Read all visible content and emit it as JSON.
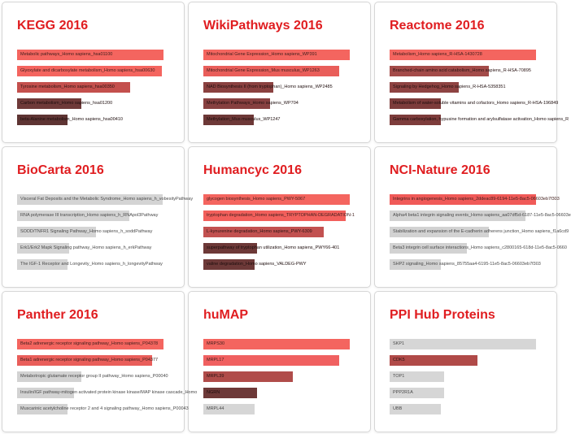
{
  "page": {
    "background": "#ffffff"
  },
  "theme": {
    "title_color": "#e01d20",
    "card_border": "#d6d6d6",
    "significant_red": "#f4655f",
    "insignificant_gray": "#d4d4d4"
  },
  "chart_data": [
    {
      "type": "bar",
      "orientation": "horizontal",
      "title": "KEGG 2016",
      "xlabel": "",
      "ylabel": "",
      "axis_shown": false,
      "bars": [
        {
          "label": "Metabolic pathways_Homo sapiens_hsa01100",
          "value": 1.0,
          "color": "#f4655f",
          "label_color": "#42201e"
        },
        {
          "label": "Glyoxylate and dicarboxylate metabolism_Homo sapiens_hsa00630",
          "value": 0.99,
          "color": "#f4655f",
          "label_color": "#42201e"
        },
        {
          "label": "Tyrosine metabolism_Homo sapiens_hsa00350",
          "value": 0.77,
          "color": "#c4504d",
          "label_color": "#2e1514"
        },
        {
          "label": "Carbon metabolism_Homo sapiens_hsa01200",
          "value": 0.44,
          "color": "#6f3a39",
          "label_color": "#1d0d0d"
        },
        {
          "label": "beta-Alanine metabolism_Homo sapiens_hsa00410",
          "value": 0.345,
          "color": "#5e3433",
          "label_color": "#1d0d0d"
        }
      ]
    },
    {
      "type": "bar",
      "orientation": "horizontal",
      "title": "WikiPathways 2016",
      "xlabel": "",
      "ylabel": "",
      "axis_shown": false,
      "bars": [
        {
          "label": "Mitochondrial Gene Expression_Homo sapiens_WP391",
          "value": 1.0,
          "color": "#f4655f",
          "label_color": "#42201e"
        },
        {
          "label": "Mitochondrial Gene Expression_Mus musculus_WP1263",
          "value": 0.93,
          "color": "#e95e5a",
          "label_color": "#42201e"
        },
        {
          "label": "NAD Biosynthesis II (from tryptophan)_Homo sapiens_WP2485",
          "value": 0.48,
          "color": "#8a4140",
          "label_color": "#200f0f"
        },
        {
          "label": "Methylation Pathways_Homo sapiens_WP704",
          "value": 0.455,
          "color": "#874040",
          "label_color": "#200f0f"
        },
        {
          "label": "Methylation_Mus musculus_WP1247",
          "value": 0.345,
          "color": "#6d3837",
          "label_color": "#1d0d0d"
        }
      ]
    },
    {
      "type": "bar",
      "orientation": "horizontal",
      "title": "Reactome 2016",
      "xlabel": "",
      "ylabel": "",
      "axis_shown": false,
      "bars": [
        {
          "label": "Metabolism_Homo sapiens_R-HSA-1430728",
          "value": 1.0,
          "color": "#f4655f",
          "label_color": "#42201e"
        },
        {
          "label": "Branched-chain amino acid catabolism_Homo sapiens_R-HSA-70895",
          "value": 0.68,
          "color": "#a34b49",
          "label_color": "#2a1313"
        },
        {
          "label": "Signaling by Hedgehog_Homo sapiens_R-HSA-5358351",
          "value": 0.47,
          "color": "#8e4342",
          "label_color": "#200f0f"
        },
        {
          "label": "Metabolism of water-soluble vitamins and cofactors_Homo sapiens_R-HSA-196849",
          "value": 0.35,
          "color": "#7d3c3b",
          "label_color": "#1d0d0d"
        },
        {
          "label": "Gamma carboxylation, hypusine formation and arylsulfatase activation_Homo sapiens_R",
          "value": 0.35,
          "color": "#7d3c3b",
          "label_color": "#1d0d0d"
        }
      ]
    },
    {
      "type": "bar",
      "orientation": "horizontal",
      "title": "BioCarta 2016",
      "xlabel": "",
      "ylabel": "",
      "axis_shown": false,
      "bars": [
        {
          "label": "Visceral Fat Deposits and the Metabolic Syndrome_Homo sapiens_h_vobesityPathway",
          "value": 0.995,
          "color": "#d4d4d4",
          "label_color": "#4a4a4a"
        },
        {
          "label": "RNA polymerase III transcription_Homo sapiens_h_RNApol3Pathway",
          "value": 0.765,
          "color": "#d4d4d4",
          "label_color": "#4a4a4a"
        },
        {
          "label": "SODD/TNFR1 Signaling Pathway_Homo sapiens_h_soddPathway",
          "value": 0.54,
          "color": "#d4d4d4",
          "label_color": "#4a4a4a"
        },
        {
          "label": "Erk1/Erk2 Mapk Signaling pathway_Homo sapiens_h_erkPathway",
          "value": 0.355,
          "color": "#d4d4d4",
          "label_color": "#4a4a4a"
        },
        {
          "label": "The IGF-1 Receptor and Longevity_Homo sapiens_h_longevityPathway",
          "value": 0.345,
          "color": "#d4d4d4",
          "label_color": "#4a4a4a"
        }
      ]
    },
    {
      "type": "bar",
      "orientation": "horizontal",
      "title": "Humancyc 2016",
      "xlabel": "",
      "ylabel": "",
      "axis_shown": false,
      "bars": [
        {
          "label": "glycogen biosynthesis_Homo sapiens_PWY-5067",
          "value": 1.0,
          "color": "#f4655f",
          "label_color": "#42201e"
        },
        {
          "label": "tryptophan degradation_Homo sapiens_TRYPTOPHAN-DEGRADATION-1",
          "value": 0.97,
          "color": "#f25f5b",
          "label_color": "#42201e"
        },
        {
          "label": "L-kynurenine degradation_Homo sapiens_PWY-6309",
          "value": 0.82,
          "color": "#c25150",
          "label_color": "#2e1514"
        },
        {
          "label": "superpathway of tryptophan utilization_Homo sapiens_PWY66-401",
          "value": 0.365,
          "color": "#6d3938",
          "label_color": "#1d0d0d"
        },
        {
          "label": "valine degradation_Homo sapiens_VALDEG-PWY",
          "value": 0.35,
          "color": "#6d3938",
          "label_color": "#1d0d0d"
        }
      ]
    },
    {
      "type": "bar",
      "orientation": "horizontal",
      "title": "NCI-Nature 2016",
      "xlabel": "",
      "ylabel": "",
      "axis_shown": false,
      "bars": [
        {
          "label": "Integrins in angiogenesis_Homo sapiens_2ddeac89-6194-11e5-8ac5-06603eb7f303",
          "value": 1.0,
          "color": "#f05a58",
          "label_color": "#42201e"
        },
        {
          "label": "Alpha4 beta1 integrin signaling events_Homo sapiens_aa07df5d-6187-11e5-8ac5-06603e",
          "value": 0.93,
          "color": "#d2d2d2",
          "label_color": "#4a4a4a"
        },
        {
          "label": "Stabilization and expansion of the E-cadherin adherens junction_Homo sapiens_f1a6cd9",
          "value": 0.68,
          "color": "#d2d2d2",
          "label_color": "#4a4a4a"
        },
        {
          "label": "Beta3 integrin cell surface interactions_Homo sapiens_c2800165-618d-11e5-8ac5-0660",
          "value": 0.53,
          "color": "#d2d2d2",
          "label_color": "#4a4a4a"
        },
        {
          "label": "SHP2 signaling_Homo sapiens_85755aa4-6195-11e5-8ac5-06603eb7f303",
          "value": 0.35,
          "color": "#d2d2d2",
          "label_color": "#4a4a4a"
        }
      ]
    },
    {
      "type": "bar",
      "orientation": "horizontal",
      "title": "Panther 2016",
      "xlabel": "",
      "ylabel": "",
      "axis_shown": false,
      "bars": [
        {
          "label": "Beta2 adrenergic receptor signaling pathway_Homo sapiens_P04378",
          "value": 1.0,
          "color": "#f4655f",
          "label_color": "#42201e"
        },
        {
          "label": "Beta1 adrenergic receptor signaling pathway_Homo sapiens_P04377",
          "value": 0.92,
          "color": "#e95e5a",
          "label_color": "#42201e"
        },
        {
          "label": "Metabotropic glutamate receptor group II pathway_Homo sapiens_P00040",
          "value": 0.44,
          "color": "#d2d2d2",
          "label_color": "#4a4a4a"
        },
        {
          "label": "Insulin/IGF pathway-mitogen activated protein kinase kinase/MAP kinase cascade_Homo",
          "value": 0.39,
          "color": "#d2d2d2",
          "label_color": "#4a4a4a"
        },
        {
          "label": "Muscarinic acetylcholine receptor 2 and 4 signaling pathway_Homo sapiens_P00043",
          "value": 0.345,
          "color": "#d2d2d2",
          "label_color": "#4a4a4a"
        }
      ]
    },
    {
      "type": "bar",
      "orientation": "horizontal",
      "title": "huMAP",
      "xlabel": "",
      "ylabel": "",
      "axis_shown": false,
      "bars": [
        {
          "label": "MRPS30",
          "value": 1.0,
          "color": "#f4655f",
          "label_color": "#42201e"
        },
        {
          "label": "MRPL17",
          "value": 0.93,
          "color": "#f06060",
          "label_color": "#42201e"
        },
        {
          "label": "MRPL39",
          "value": 0.61,
          "color": "#b04c4a",
          "label_color": "#2a1313"
        },
        {
          "label": "NGRN",
          "value": 0.365,
          "color": "#6d3938",
          "label_color": "#1d0d0d"
        },
        {
          "label": "MRPL44",
          "value": 0.35,
          "color": "#d6d6d6",
          "label_color": "#4a4a4a"
        }
      ]
    },
    {
      "type": "bar",
      "orientation": "horizontal",
      "title": "PPI Hub Proteins",
      "xlabel": "",
      "ylabel": "",
      "axis_shown": false,
      "bars": [
        {
          "label": "SKP1",
          "value": 1.0,
          "color": "#d6d6d6",
          "label_color": "#4a4a4a"
        },
        {
          "label": "CDK5",
          "value": 0.6,
          "color": "#b04a48",
          "label_color": "#2a1313"
        },
        {
          "label": "TOP1",
          "value": 0.37,
          "color": "#d6d6d6",
          "label_color": "#4a4a4a"
        },
        {
          "label": "PPP2R1A",
          "value": 0.37,
          "color": "#d6d6d6",
          "label_color": "#4a4a4a"
        },
        {
          "label": "UBB",
          "value": 0.35,
          "color": "#d6d6d6",
          "label_color": "#4a4a4a"
        }
      ]
    }
  ]
}
